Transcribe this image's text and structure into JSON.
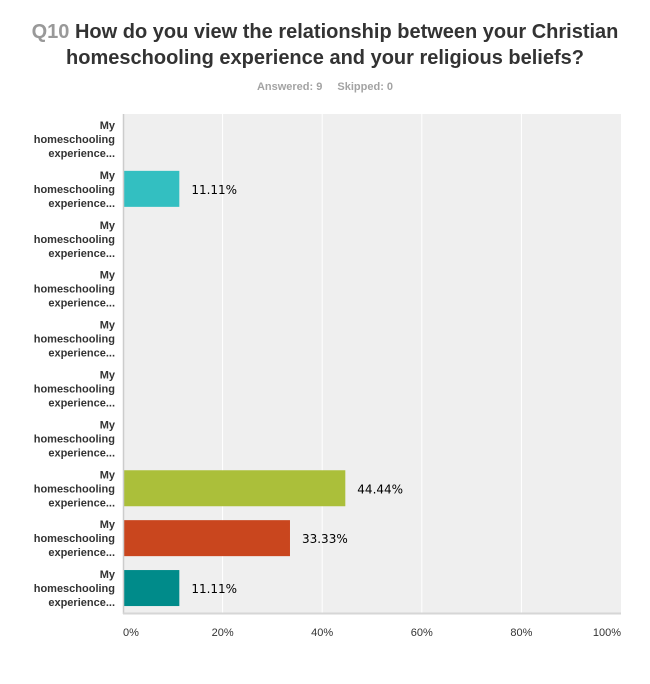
{
  "header": {
    "question_number": "Q10",
    "question_text": "How do you view the relationship between your Christian homeschooling experience and your religious beliefs?",
    "answered": "Answered: 9",
    "skipped": "Skipped: 0"
  },
  "chart_data": {
    "type": "bar",
    "orientation": "horizontal",
    "title": "Q10 How do you view the relationship between your Christian homeschooling experience and your religious beliefs?",
    "xlabel": "",
    "ylabel": "",
    "xlim": [
      0,
      100
    ],
    "x_ticks": [
      "0%",
      "20%",
      "40%",
      "60%",
      "80%",
      "100%"
    ],
    "grid": true,
    "categories": [
      [
        "My",
        "homeschooling",
        "experience..."
      ],
      [
        "My",
        "homeschooling",
        "experience..."
      ],
      [
        "My",
        "homeschooling",
        "experience..."
      ],
      [
        "My",
        "homeschooling",
        "experience..."
      ],
      [
        "My",
        "homeschooling",
        "experience..."
      ],
      [
        "My",
        "homeschooling",
        "experience..."
      ],
      [
        "My",
        "homeschooling",
        "experience..."
      ],
      [
        "My",
        "homeschooling",
        "experience..."
      ],
      [
        "My",
        "homeschooling",
        "experience..."
      ],
      [
        "My",
        "homeschooling",
        "experience..."
      ]
    ],
    "values": [
      0,
      11.11,
      0,
      0,
      0,
      0,
      0,
      44.44,
      33.33,
      11.11
    ],
    "value_labels": [
      "",
      "11.11%",
      "",
      "",
      "",
      "",
      "",
      "44.44%",
      "33.33%",
      "11.11%"
    ],
    "colors": [
      "#1f9cb0",
      "#33bfc1",
      "#2d6ea3",
      "#7b5ea7",
      "#e0a930",
      "#4a8f3a",
      "#c0392b",
      "#abbf3a",
      "#c9461e",
      "#008b8a"
    ],
    "plot_background": "#efefef",
    "legend": "none"
  }
}
